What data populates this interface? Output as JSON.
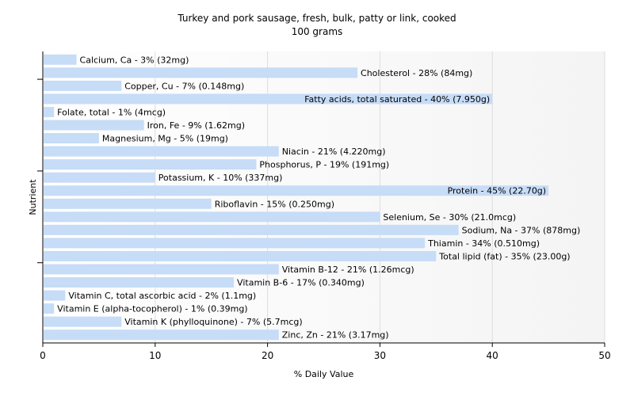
{
  "chart_data": {
    "type": "bar",
    "orientation": "horizontal",
    "title": "Turkey and pork sausage, fresh, bulk, patty or link, cooked",
    "subtitle": "100 grams",
    "xlabel": "% Daily Value",
    "ylabel": "Nutrient",
    "xlim": [
      0,
      50
    ],
    "xticks": [
      0,
      10,
      20,
      30,
      40,
      50
    ],
    "grid": true,
    "categories": [
      "Calcium, Ca",
      "Cholesterol",
      "Copper, Cu",
      "Fatty acids, total saturated",
      "Folate, total",
      "Iron, Fe",
      "Magnesium, Mg",
      "Niacin",
      "Phosphorus, P",
      "Potassium, K",
      "Protein",
      "Riboflavin",
      "Selenium, Se",
      "Sodium, Na",
      "Thiamin",
      "Total lipid (fat)",
      "Vitamin B-12",
      "Vitamin B-6",
      "Vitamin C, total ascorbic acid",
      "Vitamin E (alpha-tocopherol)",
      "Vitamin K (phylloquinone)",
      "Zinc, Zn"
    ],
    "values": [
      3,
      28,
      7,
      40,
      1,
      9,
      5,
      21,
      19,
      10,
      45,
      15,
      30,
      37,
      34,
      35,
      21,
      17,
      2,
      1,
      7,
      21
    ],
    "labels": [
      "Calcium, Ca - 3% (32mg)",
      "Cholesterol - 28% (84mg)",
      "Copper, Cu - 7% (0.148mg)",
      "Fatty acids, total saturated - 40% (7.950g)",
      "Folate, total - 1% (4mcg)",
      "Iron, Fe - 9% (1.62mg)",
      "Magnesium, Mg - 5% (19mg)",
      "Niacin - 21% (4.220mg)",
      "Phosphorus, P - 19% (191mg)",
      "Potassium, K - 10% (337mg)",
      "Protein - 45% (22.70g)",
      "Riboflavin - 15% (0.250mg)",
      "Selenium, Se - 30% (21.0mcg)",
      "Sodium, Na - 37% (878mg)",
      "Thiamin - 34% (0.510mg)",
      "Total lipid (fat) - 35% (23.00g)",
      "Vitamin B-12 - 21% (1.26mcg)",
      "Vitamin B-6 - 17% (0.340mg)",
      "Vitamin C, total ascorbic acid - 2% (1.1mg)",
      "Vitamin E (alpha-tocopherol) - 1% (0.39mg)",
      "Vitamin K (phylloquinone) - 7% (5.7mcg)",
      "Zinc, Zn - 21% (3.17mg)"
    ],
    "colors": {
      "bar": "#c6dcf7",
      "grid": "#dddddd",
      "axis": "#000000",
      "plot_bg_start": "#ffffff",
      "plot_bg_end": "#f4f4f4"
    }
  }
}
